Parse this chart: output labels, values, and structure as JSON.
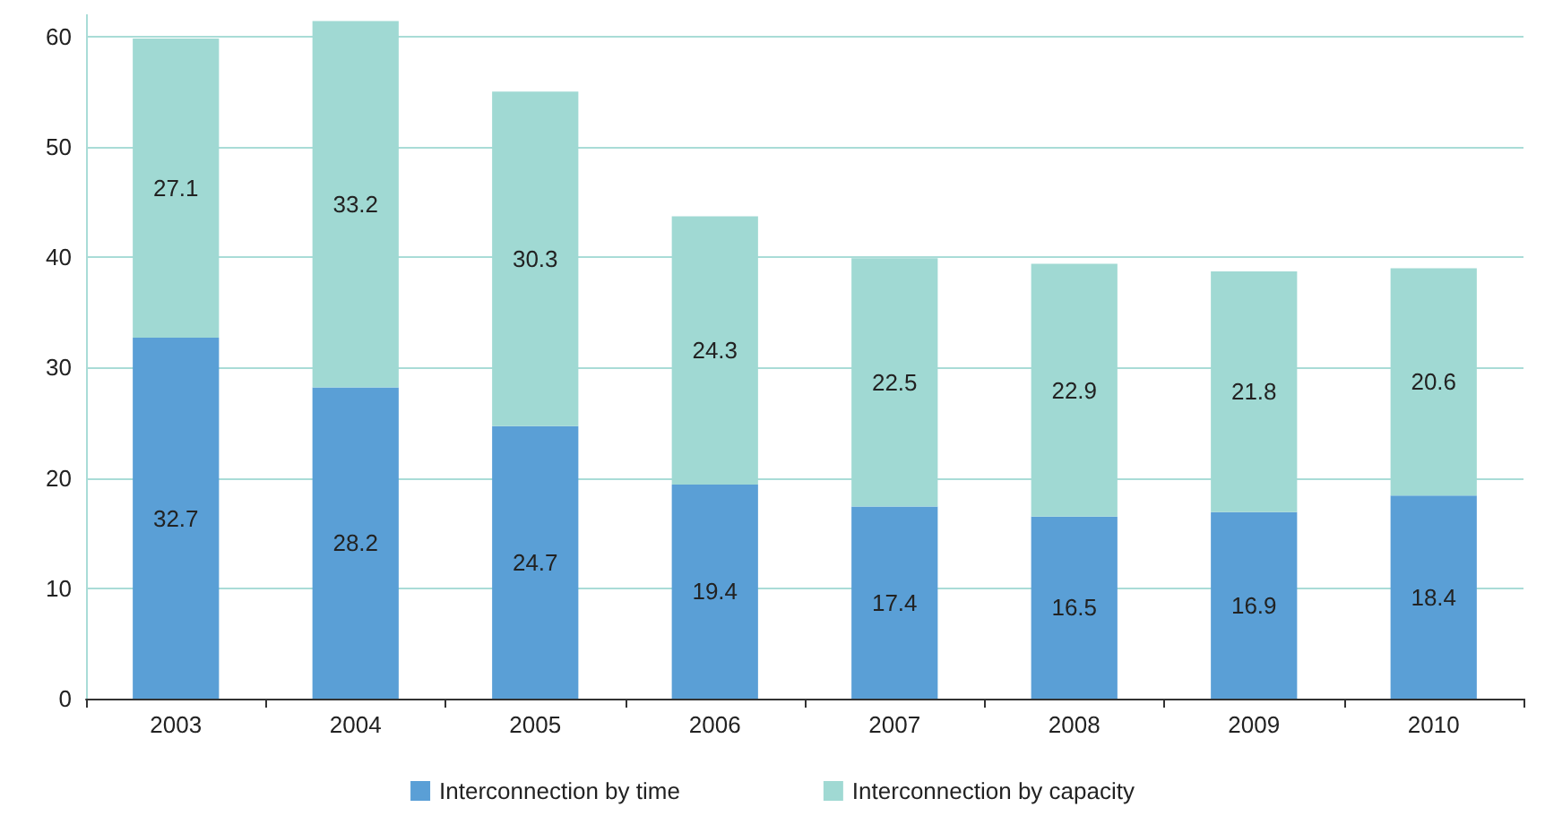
{
  "chart_data": {
    "type": "bar",
    "stacked": true,
    "categories": [
      "2003",
      "2004",
      "2005",
      "2006",
      "2007",
      "2008",
      "2009",
      "2010"
    ],
    "series": [
      {
        "name": "Interconnection by time",
        "color": "#5a9fd6",
        "values": [
          32.7,
          28.2,
          24.7,
          19.4,
          17.4,
          16.5,
          16.9,
          18.4
        ]
      },
      {
        "name": "Interconnection by capacity",
        "color": "#a0d9d3",
        "values": [
          27.1,
          33.2,
          30.3,
          24.3,
          22.5,
          22.9,
          21.8,
          20.6
        ]
      }
    ],
    "ylim": [
      0,
      62
    ],
    "yticks": [
      0,
      10,
      20,
      30,
      40,
      50,
      60
    ],
    "grid": "y",
    "legend": "bottom",
    "data_labels": true
  }
}
